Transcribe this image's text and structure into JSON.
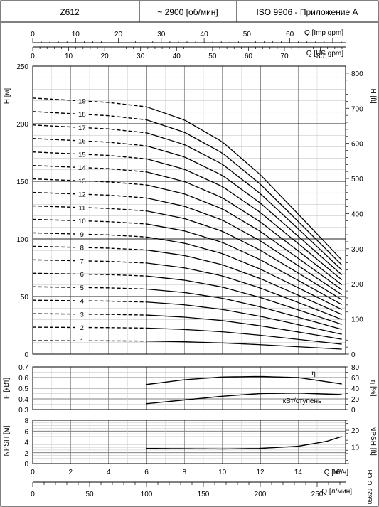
{
  "header": {
    "model": "Z612",
    "speed": "~ 2900 [об/мин]",
    "standard": "ISO 9906 - Приложение A"
  },
  "footer": {
    "code": "05620_C_CH"
  },
  "chart_data": {
    "type": "line",
    "flow_axes": {
      "imp_gpm": {
        "label": "Q [Imp gpm]",
        "range": [
          0,
          73
        ],
        "ticks": [
          0,
          10,
          20,
          30,
          40,
          50,
          60
        ]
      },
      "us_gpm": {
        "label": "Q [US gpm]",
        "range": [
          0,
          87
        ],
        "ticks": [
          0,
          10,
          20,
          30,
          40,
          50,
          60,
          70,
          80
        ]
      },
      "m3h": {
        "label": "Q [м³/ч]",
        "range": [
          0,
          16.5
        ],
        "ticks": [
          0,
          2,
          4,
          6,
          8,
          10,
          12,
          14,
          16
        ]
      },
      "lmin": {
        "label": "Q [л/мин]",
        "range": [
          0,
          275
        ],
        "ticks": [
          0,
          50,
          100,
          150,
          200,
          250
        ]
      }
    },
    "head": {
      "left_axis": {
        "label": "H [м]",
        "range": [
          0,
          250
        ],
        "ticks": [
          0,
          50,
          100,
          150,
          200,
          250
        ]
      },
      "right_axis": {
        "label": "H [ft]",
        "range": [
          0,
          820
        ],
        "ticks": [
          0,
          100,
          200,
          300,
          400,
          500,
          600,
          700,
          800
        ]
      },
      "stages": [
        1,
        2,
        3,
        4,
        5,
        6,
        7,
        8,
        9,
        10,
        11,
        12,
        13,
        14,
        15,
        16,
        17,
        18,
        19
      ],
      "stage_curve_q": [
        0,
        2,
        4,
        6,
        8,
        10,
        12,
        14,
        16.3
      ],
      "stage_curve_h": [
        11.7,
        11.6,
        11.5,
        11.3,
        10.7,
        9.7,
        8.2,
        6.4,
        4.3
      ],
      "dashed_until_q": 6,
      "curve_end_q": 16.3
    },
    "power_efficiency": {
      "left_axis": {
        "label": "P [кВт]",
        "range": [
          0.3,
          0.7
        ],
        "ticks": [
          0.3,
          0.4,
          0.5,
          0.6,
          0.7
        ]
      },
      "right_axis": {
        "label": "η [%]",
        "range": [
          0,
          80
        ],
        "ticks": [
          0,
          20,
          40,
          60,
          80
        ]
      },
      "series": [
        {
          "name": "η",
          "x": [
            6,
            8,
            10,
            12,
            14,
            16.3
          ],
          "values": [
            47,
            56,
            61,
            62,
            60,
            48
          ],
          "axis": "right"
        },
        {
          "name": "кВт/ступень",
          "x": [
            6,
            8,
            10,
            12,
            14,
            16.3
          ],
          "values": [
            0.355,
            0.39,
            0.425,
            0.45,
            0.455,
            0.44
          ],
          "axis": "left"
        }
      ]
    },
    "npsh": {
      "left_axis": {
        "label": "NPSH [м]",
        "range": [
          0,
          8
        ],
        "ticks": [
          0,
          2,
          4,
          6,
          8
        ]
      },
      "right_axis": {
        "label": "NPSH [ft]",
        "range": [
          0,
          26
        ],
        "ticks": [
          10,
          20
        ]
      },
      "series": [
        {
          "x": [
            6,
            8,
            10,
            12,
            14,
            15.5,
            16.3
          ],
          "values": [
            2.8,
            2.75,
            2.7,
            2.8,
            3.2,
            4.1,
            5.0
          ]
        }
      ]
    },
    "grid": true
  }
}
